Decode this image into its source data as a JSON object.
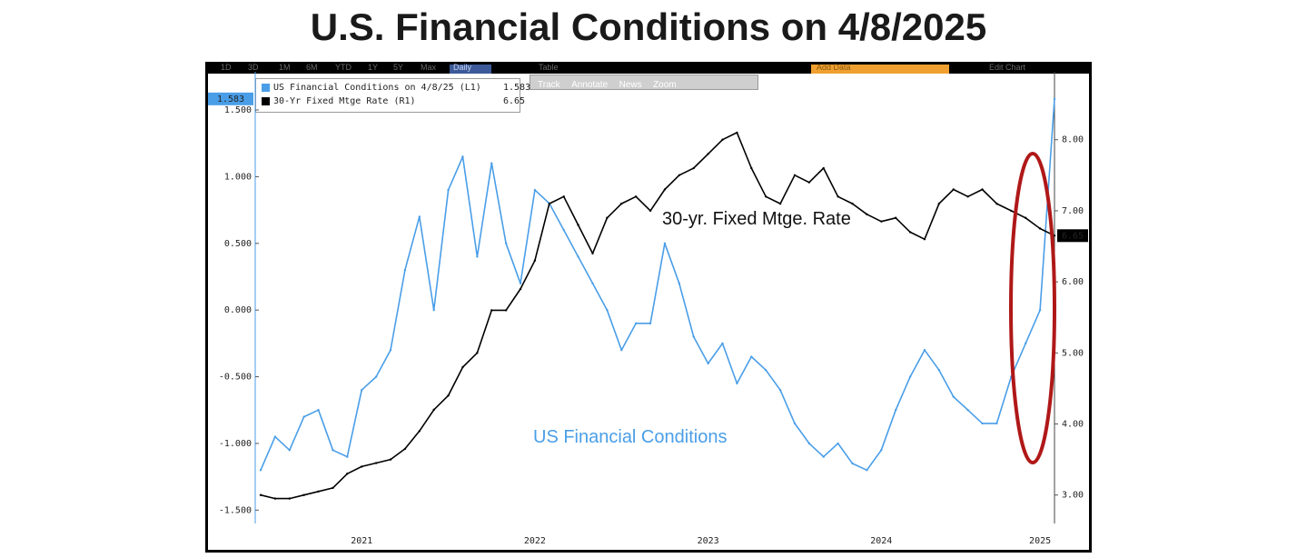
{
  "title": "U.S. Financial Conditions on 4/8/2025",
  "toolbar": {
    "timeframes": [
      "1D",
      "3D",
      "1M",
      "6M",
      "YTD",
      "1Y",
      "5Y",
      "Max",
      "Daily"
    ],
    "table_label": "Table",
    "add_data": "Add Data",
    "edit_chart": "Edit Chart",
    "tools": [
      "Track",
      "Annotate",
      "News",
      "Zoom"
    ]
  },
  "legend": {
    "items": [
      {
        "label": "US Financial Conditions on 4/8/25 (L1)",
        "value": "1.583",
        "color": "#4a9ee8"
      },
      {
        "label": "30-Yr Fixed Mtge Rate (R1)",
        "value": "6.65",
        "color": "#000000"
      }
    ]
  },
  "colors": {
    "fci": "#4a9ee8",
    "mortgage": "#000000",
    "highlight": "#b01818"
  },
  "chart_data": {
    "type": "line",
    "title": "U.S. Financial Conditions on 4/8/2025",
    "x_ticks": [
      "2021",
      "2022",
      "2023",
      "2024",
      "2025"
    ],
    "left_axis": {
      "ticks": [
        "1.500",
        "1.000",
        "0.500",
        "0.000",
        "-0.500",
        "-1.000",
        "-1.500"
      ],
      "range": [
        -1.6,
        1.65
      ]
    },
    "right_axis": {
      "ticks": [
        "8.00",
        "7.00",
        "6.00",
        "5.00",
        "4.00",
        "3.00"
      ],
      "range": [
        2.6,
        8.7
      ]
    },
    "series": [
      {
        "name": "US Financial Conditions on 4/8/25 (L1)",
        "axis": "left",
        "last_value": "1.583",
        "x": [
          "2020-09",
          "2020-10",
          "2020-11",
          "2020-12",
          "2021-01",
          "2021-02",
          "2021-03",
          "2021-04",
          "2021-05",
          "2021-06",
          "2021-07",
          "2021-08",
          "2021-09",
          "2021-10",
          "2021-11",
          "2021-12",
          "2022-01",
          "2022-02",
          "2022-03",
          "2022-04",
          "2022-05",
          "2022-06",
          "2022-07",
          "2022-08",
          "2022-09",
          "2022-10",
          "2022-11",
          "2022-12",
          "2023-01",
          "2023-02",
          "2023-03",
          "2023-04",
          "2023-05",
          "2023-06",
          "2023-07",
          "2023-08",
          "2023-09",
          "2023-10",
          "2023-11",
          "2023-12",
          "2024-01",
          "2024-02",
          "2024-03",
          "2024-04",
          "2024-05",
          "2024-06",
          "2024-07",
          "2024-08",
          "2024-09",
          "2024-10",
          "2024-11",
          "2024-12",
          "2025-01",
          "2025-02",
          "2025-03",
          "2025-04"
        ],
        "values": [
          -1.2,
          -0.95,
          -1.05,
          -0.8,
          -0.75,
          -1.05,
          -1.1,
          -0.6,
          -0.5,
          -0.3,
          0.3,
          0.7,
          0.0,
          0.9,
          1.15,
          0.4,
          1.1,
          0.5,
          0.2,
          0.9,
          0.8,
          0.6,
          0.4,
          0.2,
          0.0,
          -0.3,
          -0.1,
          -0.1,
          0.5,
          0.2,
          -0.2,
          -0.4,
          -0.25,
          -0.55,
          -0.35,
          -0.45,
          -0.6,
          -0.85,
          -1.0,
          -1.1,
          -1.0,
          -1.15,
          -1.2,
          -1.05,
          -0.75,
          -0.5,
          -0.3,
          -0.45,
          -0.65,
          -0.75,
          -0.85,
          -0.85,
          -0.5,
          -0.25,
          0.0,
          1.583
        ]
      },
      {
        "name": "30-Yr Fixed Mtge Rate (R1)",
        "axis": "right",
        "last_value": "6.65",
        "x": [
          "2020-09",
          "2020-10",
          "2020-11",
          "2020-12",
          "2021-01",
          "2021-02",
          "2021-03",
          "2021-04",
          "2021-05",
          "2021-06",
          "2021-07",
          "2021-08",
          "2021-09",
          "2021-10",
          "2021-11",
          "2021-12",
          "2022-01",
          "2022-02",
          "2022-03",
          "2022-04",
          "2022-05",
          "2022-06",
          "2022-07",
          "2022-08",
          "2022-09",
          "2022-10",
          "2022-11",
          "2022-12",
          "2023-01",
          "2023-02",
          "2023-03",
          "2023-04",
          "2023-05",
          "2023-06",
          "2023-07",
          "2023-08",
          "2023-09",
          "2023-10",
          "2023-11",
          "2023-12",
          "2024-01",
          "2024-02",
          "2024-03",
          "2024-04",
          "2024-05",
          "2024-06",
          "2024-07",
          "2024-08",
          "2024-09",
          "2024-10",
          "2024-11",
          "2024-12",
          "2025-01",
          "2025-02",
          "2025-03",
          "2025-04"
        ],
        "values": [
          3.0,
          2.95,
          2.95,
          3.0,
          3.05,
          3.1,
          3.3,
          3.4,
          3.45,
          3.5,
          3.65,
          3.9,
          4.2,
          4.4,
          4.8,
          5.0,
          5.6,
          5.6,
          5.9,
          6.3,
          7.1,
          7.2,
          6.8,
          6.4,
          6.9,
          7.1,
          7.2,
          7.0,
          7.3,
          7.5,
          7.6,
          7.8,
          8.0,
          8.1,
          7.6,
          7.2,
          7.1,
          7.5,
          7.4,
          7.6,
          7.2,
          7.1,
          6.95,
          6.85,
          6.9,
          6.7,
          6.6,
          7.1,
          7.3,
          7.2,
          7.3,
          7.1,
          7.0,
          6.9,
          6.75,
          6.65
        ]
      }
    ],
    "annotations": [
      "30-yr. Fixed Mtge. Rate",
      "US Financial Conditions"
    ],
    "grid": false,
    "legend_position": "top-left"
  }
}
